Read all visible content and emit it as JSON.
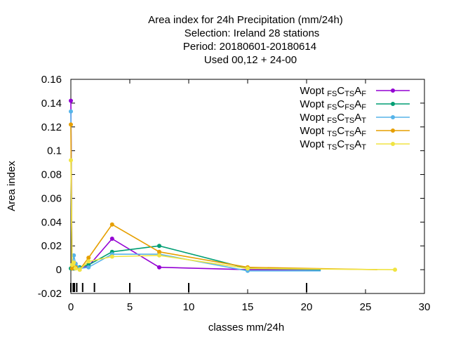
{
  "chart_data": {
    "type": "line",
    "title_lines": [
      "Area index  for 24h Precipitation (mm/24h)",
      "Selection: Ireland     28 stations",
      "Period: 20180601-20180614",
      "Used  00,12  + 24-00"
    ],
    "xlabel": "classes mm/24h",
    "ylabel": "Area index",
    "xlim": [
      0,
      30
    ],
    "ylim": [
      -0.02,
      0.16
    ],
    "x_ticks": [
      0,
      5,
      10,
      15,
      20,
      25,
      30
    ],
    "y_ticks": [
      -0.02,
      0,
      0.02,
      0.04,
      0.06,
      0.08,
      0.1,
      0.12,
      0.14,
      0.16
    ],
    "x_tick_labels": [
      "0",
      "5",
      "10",
      "15",
      "20",
      "25",
      "30"
    ],
    "y_tick_labels": [
      "-0.02",
      "0",
      "0.02",
      "0.04",
      "0.06",
      "0.08",
      "0.1",
      "0.12",
      "0.14",
      "0.16"
    ],
    "class_limits": [
      0,
      0.2,
      0.3,
      0.5,
      1,
      2,
      5,
      10,
      20
    ],
    "legend_position": "top-right",
    "grid": false,
    "series": [
      {
        "name": "Wopt FS C TS A F",
        "legend": {
          "main": "Wopt",
          "parts": [
            {
              "t": "FS",
              "sub": true
            },
            {
              "t": "C",
              "sub": false
            },
            {
              "t": "TS",
              "sub": true
            },
            {
              "t": "A",
              "sub": false
            },
            {
              "t": "F",
              "sub": true
            }
          ]
        },
        "color": "#9400d3",
        "x": [
          0,
          0.1,
          0.25,
          0.4,
          0.75,
          1.5,
          3.5,
          7.5,
          15
        ],
        "y": [
          0.142,
          0.002,
          0.001,
          0.005,
          0.001,
          0.003,
          0.026,
          0.002,
          0.0
        ],
        "tail_x": 21.2,
        "tail_y": 0.0
      },
      {
        "name": "Wopt FS C FS A F",
        "legend": {
          "main": "Wopt",
          "parts": [
            {
              "t": "FS",
              "sub": true
            },
            {
              "t": "C",
              "sub": false
            },
            {
              "t": "FS",
              "sub": true
            },
            {
              "t": "A",
              "sub": false
            },
            {
              "t": "F",
              "sub": true
            }
          ]
        },
        "color": "#009e73",
        "x": [
          0,
          0.1,
          0.25,
          0.4,
          0.75,
          1.5,
          3.5,
          7.5,
          15
        ],
        "y": [
          0.001,
          0.001,
          0.001,
          0.003,
          0.002,
          0.004,
          0.015,
          0.02,
          0.001
        ],
        "tail_x": 21.2,
        "tail_y": 0.0
      },
      {
        "name": "Wopt FS C TS A T",
        "legend": {
          "main": "Wopt",
          "parts": [
            {
              "t": "FS",
              "sub": true
            },
            {
              "t": "C",
              "sub": false
            },
            {
              "t": "TS",
              "sub": true
            },
            {
              "t": "A",
              "sub": false
            },
            {
              "t": "T",
              "sub": true
            }
          ]
        },
        "color": "#56b4e9",
        "x": [
          0,
          0.1,
          0.25,
          0.4,
          0.75,
          1.5,
          3.5,
          7.5,
          15
        ],
        "y": [
          0.133,
          0.001,
          0.012,
          0.005,
          0.001,
          0.002,
          0.013,
          0.013,
          -0.001
        ],
        "tail_x": 21.2,
        "tail_y": -0.001
      },
      {
        "name": "Wopt TS C TS A F",
        "legend": {
          "main": "Wopt",
          "parts": [
            {
              "t": "TS",
              "sub": true
            },
            {
              "t": "C",
              "sub": false
            },
            {
              "t": "TS",
              "sub": true
            },
            {
              "t": "A",
              "sub": false
            },
            {
              "t": "F",
              "sub": true
            }
          ]
        },
        "color": "#e69f00",
        "x": [
          0,
          0.1,
          0.25,
          0.4,
          0.75,
          1.5,
          3.5,
          7.5,
          15
        ],
        "y": [
          0.122,
          0.001,
          0.002,
          0.002,
          0.0,
          0.01,
          0.038,
          0.015,
          0.002
        ],
        "tail_x": 26,
        "tail_y": 0.0
      },
      {
        "name": "Wopt TS C TS A T",
        "legend": {
          "main": "Wopt",
          "parts": [
            {
              "t": "TS",
              "sub": true
            },
            {
              "t": "C",
              "sub": false
            },
            {
              "t": "TS",
              "sub": true
            },
            {
              "t": "A",
              "sub": false
            },
            {
              "t": "T",
              "sub": true
            }
          ]
        },
        "color": "#f0e442",
        "x": [
          0,
          0.1,
          0.25,
          0.4,
          0.75,
          1.5,
          3.5,
          7.5,
          15,
          27.5
        ],
        "y": [
          0.092,
          0.004,
          0.006,
          0.001,
          0.0,
          0.007,
          0.011,
          0.012,
          0.001,
          0.0
        ],
        "tail_x": 27.5,
        "tail_y": 0.0
      }
    ]
  }
}
